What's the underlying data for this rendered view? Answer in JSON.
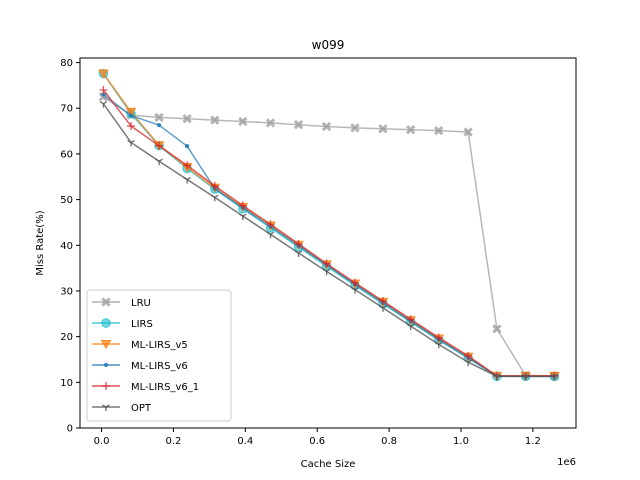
{
  "chart_data": {
    "type": "line",
    "title": "w099",
    "xlabel": "Cache Size",
    "ylabel": "Miss Rate(%)",
    "x_offset_label": "1e6",
    "xlim": [
      -0.06,
      1.32
    ],
    "ylim": [
      0,
      81
    ],
    "xticks": [
      0.0,
      0.2,
      0.4,
      0.6,
      0.8,
      1.0,
      1.2
    ],
    "xtick_labels": [
      "0.0",
      "0.2",
      "0.4",
      "0.6",
      "0.8",
      "1.0",
      "1.2"
    ],
    "yticks": [
      0,
      10,
      20,
      30,
      40,
      50,
      60,
      70,
      80
    ],
    "ytick_labels": [
      "0",
      "10",
      "20",
      "30",
      "40",
      "50",
      "60",
      "70",
      "80"
    ],
    "x_scale_note": "x values in units of 1e6",
    "x": [
      0.005,
      0.082,
      0.16,
      0.238,
      0.315,
      0.393,
      0.47,
      0.548,
      0.626,
      0.705,
      0.783,
      0.86,
      0.938,
      1.02,
      1.1,
      1.18,
      1.26
    ],
    "legend_position": "lower left",
    "grid": false,
    "series": [
      {
        "name": "LRU",
        "color": "#999999",
        "marker": "X",
        "values": [
          72.5,
          68.5,
          68.0,
          67.7,
          67.4,
          67.1,
          66.8,
          66.4,
          66.0,
          65.7,
          65.5,
          65.3,
          65.1,
          64.8,
          21.7,
          11.5,
          11.4
        ]
      },
      {
        "name": "LIRS",
        "color": "#17becf",
        "marker": "o",
        "values": [
          77.6,
          68.8,
          61.8,
          56.8,
          52.3,
          48.0,
          43.8,
          39.6,
          35.4,
          31.2,
          27.2,
          23.2,
          19.2,
          15.3,
          11.3,
          11.3,
          11.3
        ]
      },
      {
        "name": "ML-LIRS_v5",
        "color": "#ff7f0e",
        "marker": "v",
        "values": [
          77.6,
          69.2,
          61.9,
          57.1,
          52.6,
          48.4,
          44.3,
          40.1,
          35.8,
          31.6,
          27.6,
          23.6,
          19.6,
          15.6,
          11.4,
          11.4,
          11.4
        ]
      },
      {
        "name": "ML-LIRS_v6",
        "color": "#1f77b4",
        "marker": ".",
        "values": [
          73.0,
          68.4,
          66.3,
          61.7,
          52.4,
          48.2,
          44.1,
          39.9,
          35.7,
          31.5,
          27.4,
          23.4,
          19.4,
          15.4,
          11.4,
          11.3,
          11.3
        ]
      },
      {
        "name": "ML-LIRS_v6_1",
        "color": "#d62728",
        "marker": "+",
        "values": [
          74.0,
          66.1,
          61.8,
          57.5,
          53.0,
          48.7,
          44.6,
          40.3,
          36.0,
          31.8,
          27.8,
          23.8,
          19.8,
          15.8,
          11.4,
          11.4,
          11.4
        ]
      },
      {
        "name": "OPT",
        "color": "#555555",
        "marker": "1",
        "values": [
          71.0,
          62.5,
          58.4,
          54.4,
          50.5,
          46.4,
          42.4,
          38.3,
          34.3,
          30.3,
          26.3,
          22.3,
          18.3,
          14.4,
          11.3,
          11.3,
          11.3
        ]
      }
    ]
  }
}
